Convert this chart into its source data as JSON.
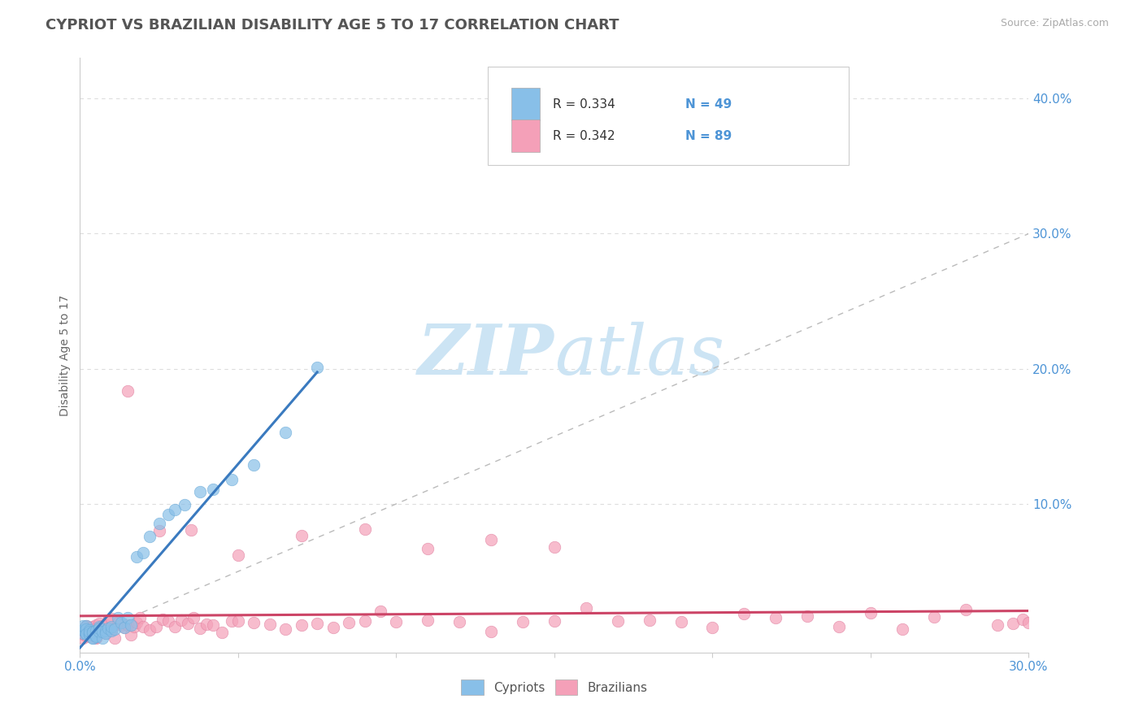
{
  "title": "CYPRIOT VS BRAZILIAN DISABILITY AGE 5 TO 17 CORRELATION CHART",
  "source": "Source: ZipAtlas.com",
  "ylabel": "Disability Age 5 to 17",
  "xlim": [
    0.0,
    0.3
  ],
  "ylim": [
    -0.01,
    0.43
  ],
  "cypriot_color": "#88bfe8",
  "cypriot_edge": "#6aaad8",
  "brazilian_color": "#f4a0b8",
  "brazilian_edge": "#e080a0",
  "cypriot_R": 0.334,
  "cypriot_N": 49,
  "brazilian_R": 0.342,
  "brazilian_N": 89,
  "legend_text_color": "#4d94d6",
  "watermark_zip_color": "#cce4f4",
  "watermark_atlas_color": "#cce4f4",
  "background_color": "#ffffff",
  "grid_color": "#dddddd",
  "title_color": "#555555",
  "axis_tick_color": "#4d94d6",
  "trend_cypriot": "#3a7abf",
  "trend_brazilian": "#cc4466",
  "ref_line_color": "#bbbbbb",
  "ytick_vals": [
    0.1,
    0.2,
    0.3,
    0.4
  ],
  "ytick_labels": [
    "10.0%",
    "20.0%",
    "30.0%",
    "40.0%"
  ]
}
